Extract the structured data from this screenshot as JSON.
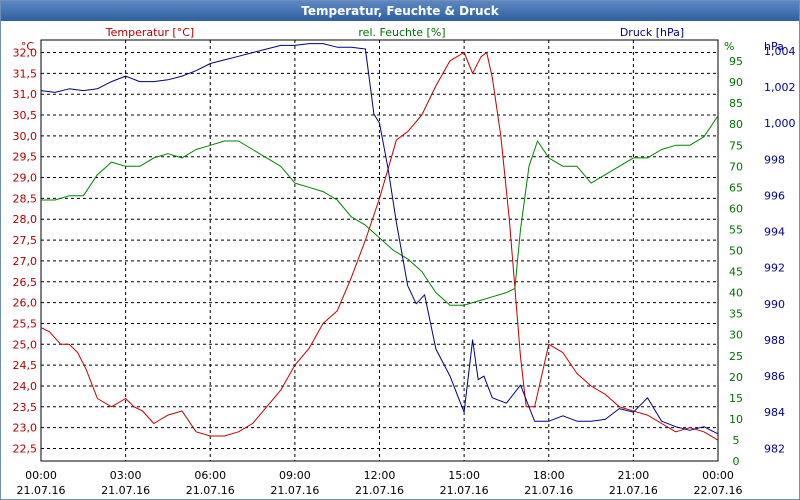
{
  "window": {
    "title": "Temperatur, Feuchte & Druck"
  },
  "chart_data": {
    "type": "line",
    "title": "Temperatur, Feuchte & Druck",
    "legend": [
      "Temperatur [°C]",
      "rel. Feuchte [%]",
      "Druck [hPa]"
    ],
    "grid": true,
    "axes": {
      "temperature": {
        "unit": "°C",
        "range": [
          22.2,
          32.3
        ],
        "color": "#b00000",
        "ticks": [
          "22,5",
          "23,0",
          "23,5",
          "24,0",
          "24,5",
          "25,0",
          "25,5",
          "26,0",
          "26,5",
          "27,0",
          "27,5",
          "28,0",
          "28,5",
          "29,0",
          "29,5",
          "30,0",
          "30,5",
          "31,0",
          "31,5",
          "32,0"
        ]
      },
      "humidity": {
        "unit": "%",
        "range": [
          0,
          100
        ],
        "color": "#007000",
        "ticks": [
          "0",
          "5",
          "10",
          "15",
          "20",
          "25",
          "30",
          "35",
          "40",
          "45",
          "50",
          "55",
          "60",
          "65",
          "70",
          "75",
          "80",
          "85",
          "90",
          "95"
        ]
      },
      "pressure": {
        "unit": "hPa",
        "range": [
          981.3,
          1004.6
        ],
        "color": "#000090",
        "ticks": [
          "982",
          "984",
          "986",
          "988",
          "990",
          "992",
          "994",
          "996",
          "998",
          "1,000",
          "1,002",
          "1,004"
        ]
      }
    },
    "x_ticks": [
      {
        "time": "00:00",
        "date": "21.07.16"
      },
      {
        "time": "03:00",
        "date": "21.07.16"
      },
      {
        "time": "06:00",
        "date": "21.07.16"
      },
      {
        "time": "09:00",
        "date": "21.07.16"
      },
      {
        "time": "12:00",
        "date": "21.07.16"
      },
      {
        "time": "15:00",
        "date": "21.07.16"
      },
      {
        "time": "18:00",
        "date": "21.07.16"
      },
      {
        "time": "21:00",
        "date": "21.07.16"
      },
      {
        "time": "00:00",
        "date": "22.07.16"
      }
    ],
    "x_range_hours": [
      0,
      24
    ],
    "series": [
      {
        "name": "Temperatur [°C]",
        "axis": "temperature",
        "color": "#c00000",
        "x": [
          0,
          0.3,
          0.7,
          1.0,
          1.3,
          1.6,
          2.0,
          2.5,
          3.0,
          3.3,
          3.6,
          4.0,
          4.5,
          5.0,
          5.5,
          6.0,
          6.5,
          7.0,
          7.5,
          8.0,
          8.5,
          9.0,
          9.5,
          10.0,
          10.5,
          11.0,
          11.5,
          12.0,
          12.3,
          12.6,
          13.0,
          13.5,
          14.0,
          14.5,
          15.0,
          15.3,
          15.6,
          15.8,
          16.0,
          16.3,
          16.6,
          17.0,
          17.2,
          17.5,
          18.0,
          18.5,
          19.0,
          19.5,
          20.0,
          20.5,
          21.0,
          21.5,
          22.0,
          22.5,
          23.0,
          23.5,
          24.0
        ],
        "y": [
          25.4,
          25.3,
          25.0,
          25.0,
          24.8,
          24.4,
          23.7,
          23.5,
          23.7,
          23.5,
          23.4,
          23.1,
          23.3,
          23.4,
          22.9,
          22.8,
          22.8,
          22.9,
          23.1,
          23.5,
          23.9,
          24.5,
          24.9,
          25.5,
          25.8,
          26.6,
          27.5,
          28.5,
          29.2,
          29.9,
          30.1,
          30.5,
          31.2,
          31.8,
          32.0,
          31.5,
          31.9,
          32.0,
          31.4,
          30.0,
          28.0,
          24.7,
          23.5,
          23.5,
          25.0,
          24.8,
          24.3,
          24.0,
          23.8,
          23.5,
          23.4,
          23.3,
          23.1,
          22.9,
          23.0,
          22.9,
          22.7
        ]
      },
      {
        "name": "rel. Feuchte [%]",
        "axis": "humidity",
        "color": "#008000",
        "x": [
          0,
          0.5,
          1.0,
          1.5,
          2.0,
          2.5,
          3.0,
          3.5,
          4.0,
          4.5,
          5.0,
          5.5,
          6.0,
          6.5,
          7.0,
          7.5,
          8.0,
          8.5,
          9.0,
          9.5,
          10.0,
          10.5,
          11.0,
          11.5,
          12.0,
          12.5,
          13.0,
          13.5,
          14.0,
          14.5,
          15.0,
          15.5,
          16.0,
          16.5,
          16.8,
          17.0,
          17.3,
          17.6,
          18.0,
          18.5,
          19.0,
          19.5,
          20.0,
          20.5,
          21.0,
          21.5,
          22.0,
          22.5,
          23.0,
          23.5,
          24.0
        ],
        "y": [
          62,
          62,
          63,
          63,
          68,
          71,
          70,
          70,
          72,
          73,
          72,
          74,
          75,
          76,
          76,
          74,
          72,
          70,
          66,
          65,
          64,
          62,
          58,
          56,
          53,
          50,
          48,
          45,
          40,
          37,
          37,
          38,
          39,
          40,
          41,
          55,
          70,
          76,
          72,
          70,
          70,
          66,
          68,
          70,
          72,
          72,
          74,
          75,
          75,
          77,
          82
        ]
      },
      {
        "name": "Druck [hPa]",
        "axis": "pressure",
        "color": "#000080",
        "x": [
          0,
          0.5,
          1.0,
          1.5,
          2.0,
          2.5,
          3.0,
          3.5,
          4.0,
          4.5,
          5.0,
          5.5,
          6.0,
          6.5,
          7.0,
          7.5,
          8.0,
          8.5,
          9.0,
          9.5,
          10.0,
          10.5,
          11.0,
          11.5,
          11.8,
          12.0,
          12.3,
          12.6,
          13.0,
          13.3,
          13.6,
          14.0,
          14.5,
          15.0,
          15.3,
          15.5,
          15.7,
          16.0,
          16.5,
          17.0,
          17.5,
          18.0,
          18.5,
          19.0,
          19.5,
          20.0,
          20.5,
          21.0,
          21.5,
          22.0,
          22.5,
          23.0,
          23.5,
          24.0
        ],
        "y": [
          1001.8,
          1001.7,
          1001.9,
          1001.8,
          1001.9,
          1002.3,
          1002.6,
          1002.3,
          1002.3,
          1002.4,
          1002.6,
          1002.9,
          1003.3,
          1003.5,
          1003.7,
          1003.9,
          1004.1,
          1004.3,
          1004.3,
          1004.4,
          1004.4,
          1004.2,
          1004.2,
          1004.1,
          1000.5,
          1000.0,
          997.5,
          994.5,
          991.0,
          990.0,
          990.5,
          987.5,
          986.0,
          984.0,
          988.0,
          985.8,
          986.0,
          984.8,
          984.5,
          985.5,
          983.5,
          983.5,
          983.8,
          983.5,
          983.5,
          983.6,
          984.2,
          984.0,
          984.8,
          983.5,
          983.2,
          983.0,
          983.2,
          982.8
        ]
      }
    ]
  }
}
